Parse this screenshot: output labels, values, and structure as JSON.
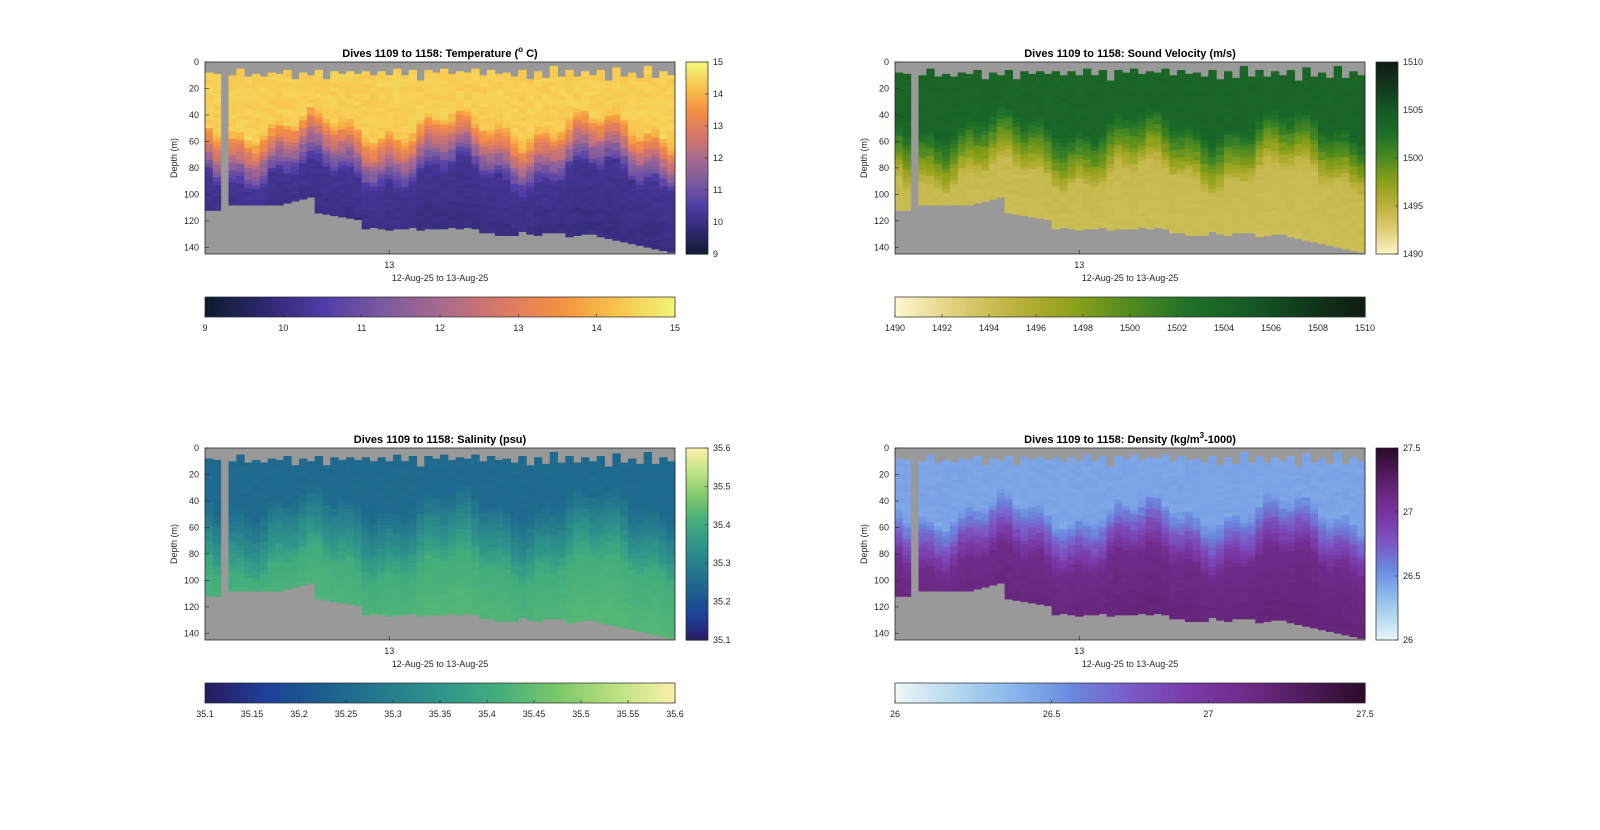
{
  "chart_data": [
    {
      "type": "heatmap",
      "title_main": "Dives 1109 to 1158: Temperature (",
      "title_sup": "o",
      "title_end": " C)",
      "ylabel": "Depth (m)",
      "xlabel": "12-Aug-25 to 13-Aug-25",
      "xtick_labels": [
        "13"
      ],
      "yticks": [
        0,
        20,
        40,
        60,
        80,
        100,
        120,
        140
      ],
      "ylim": [
        0,
        145
      ],
      "colorbar": {
        "min": 9,
        "max": 15,
        "colors": [
          "#0d1b2e",
          "#2e2870",
          "#4f3ca8",
          "#7a5aa0",
          "#a86a8e",
          "#d87868",
          "#f58f42",
          "#f8c44c",
          "#f2f57a"
        ],
        "vticks": [
          "9",
          "10",
          "11",
          "12",
          "13",
          "14",
          "15"
        ],
        "hticks": [
          "9",
          "10",
          "11",
          "12",
          "13",
          "14",
          "15"
        ]
      },
      "profile": {
        "surface": 14.4,
        "deep": 10.2,
        "thermocline": [
          45,
          85
        ],
        "deep_dark": 10.0
      },
      "land_color": "#999999"
    },
    {
      "type": "heatmap",
      "title_main": "Dives 1109 to 1158: Sound Velocity (m/s)",
      "title_sup": "",
      "title_end": "",
      "ylabel": "Depth (m)",
      "xlabel": "12-Aug-25 to 13-Aug-25",
      "xtick_labels": [
        "13"
      ],
      "yticks": [
        0,
        20,
        40,
        60,
        80,
        100,
        120,
        140
      ],
      "ylim": [
        0,
        145
      ],
      "colorbar": {
        "min": 1490,
        "max": 1510,
        "colors": [
          "#fdf7cc",
          "#e0cf7a",
          "#bdb23e",
          "#8fa01a",
          "#4f8b20",
          "#1f7028",
          "#155a25",
          "#11391d",
          "#111a12"
        ],
        "vticks": [
          "1490",
          "1495",
          "1500",
          "1505",
          "1510"
        ],
        "hticks": [
          "1490",
          "1492",
          "1494",
          "1496",
          "1498",
          "1500",
          "1502",
          "1504",
          "1506",
          "1508",
          "1510"
        ]
      },
      "profile": {
        "surface": 1503.8,
        "deep": 1494.3,
        "thermocline": [
          45,
          85
        ],
        "deep_dark": 1494.0
      },
      "land_color": "#999999"
    },
    {
      "type": "heatmap",
      "title_main": "Dives 1109 to 1158: Salinity (psu)",
      "title_sup": "",
      "title_end": "",
      "ylabel": "Depth (m)",
      "xlabel": "12-Aug-25 to 13-Aug-25",
      "xtick_labels": [
        "13"
      ],
      "yticks": [
        0,
        20,
        40,
        60,
        80,
        100,
        120,
        140
      ],
      "ylim": [
        0,
        145
      ],
      "colorbar": {
        "min": 35.1,
        "max": 35.6,
        "colors": [
          "#2a1a5e",
          "#1e3f9a",
          "#1b5f8f",
          "#257a8e",
          "#2f958a",
          "#44ae7c",
          "#7cc86a",
          "#bde283",
          "#fbf1a9"
        ],
        "vticks": [
          "35.1",
          "35.2",
          "35.3",
          "35.4",
          "35.5",
          "35.6"
        ],
        "hticks": [
          "35.1",
          "35.15",
          "35.2",
          "35.25",
          "35.3",
          "35.35",
          "35.4",
          "35.45",
          "35.5",
          "35.55",
          "35.6"
        ]
      },
      "profile": {
        "surface": 35.25,
        "deep": 35.41,
        "thermocline": [
          40,
          90
        ],
        "deep_dark": 35.43
      },
      "land_color": "#999999"
    },
    {
      "type": "heatmap",
      "title_main": "Dives 1109 to 1158: Density (kg/m",
      "title_sup": "3",
      "title_end": "-1000)",
      "ylabel": "Depth (m)",
      "xlabel": "12-Aug-25 to 13-Aug-25",
      "xtick_labels": [
        "13"
      ],
      "yticks": [
        0,
        20,
        40,
        60,
        80,
        100,
        120,
        140
      ],
      "ylim": [
        0,
        145
      ],
      "colorbar": {
        "min": 26,
        "max": 27.5,
        "colors": [
          "#eef6f6",
          "#b4d8ef",
          "#88b6ec",
          "#6a88de",
          "#7a5ac8",
          "#7a3aa8",
          "#6e2a88",
          "#4e1a5a",
          "#2a0a28"
        ],
        "vticks": [
          "26",
          "26.5",
          "27",
          "27.5"
        ],
        "hticks": [
          "26",
          "26.5",
          "27",
          "27.5"
        ]
      },
      "profile": {
        "surface": 26.45,
        "deep": 27.12,
        "thermocline": [
          45,
          85
        ],
        "deep_dark": 27.18
      },
      "land_color": "#999999"
    }
  ]
}
